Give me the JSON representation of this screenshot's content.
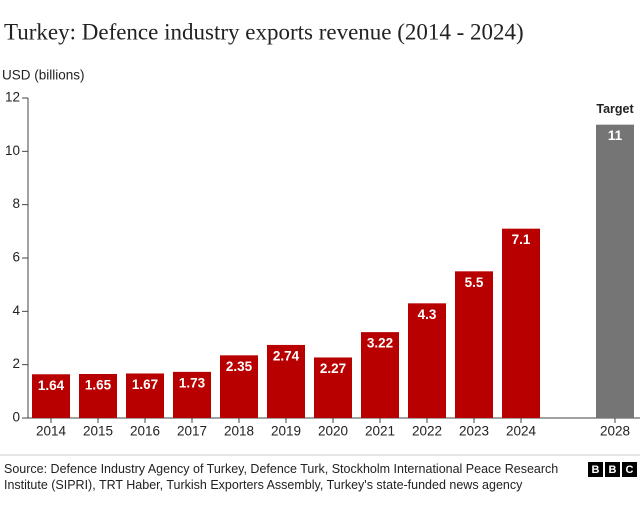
{
  "chart_data": {
    "type": "bar",
    "title": "Turkey: Defence industry exports revenue (2014 - 2024)",
    "y_label": "USD (billions)",
    "categories": [
      "2014",
      "2015",
      "2016",
      "2017",
      "2018",
      "2019",
      "2020",
      "2021",
      "2022",
      "2023",
      "2024",
      null,
      "2028"
    ],
    "values": [
      1.64,
      1.65,
      1.67,
      1.73,
      2.35,
      2.74,
      2.27,
      3.22,
      4.3,
      5.5,
      7.1,
      null,
      11
    ],
    "colors": [
      "#b80000",
      "#b80000",
      "#b80000",
      "#b80000",
      "#b80000",
      "#b80000",
      "#b80000",
      "#b80000",
      "#b80000",
      "#b80000",
      "#b80000",
      null,
      "#757575"
    ],
    "annotation": "Target",
    "ylim": [
      0,
      12
    ],
    "yticks": [
      0,
      2,
      4,
      6,
      8,
      10,
      12
    ],
    "grid": false
  },
  "source": "Source: Defence Industry Agency of Turkey, Defence Turk, Stockholm International Peace Research Institute (SIPRI), TRT Haber, Turkish Exporters Assembly, Turkey's state-funded news agency",
  "logo": [
    "B",
    "B",
    "C"
  ]
}
